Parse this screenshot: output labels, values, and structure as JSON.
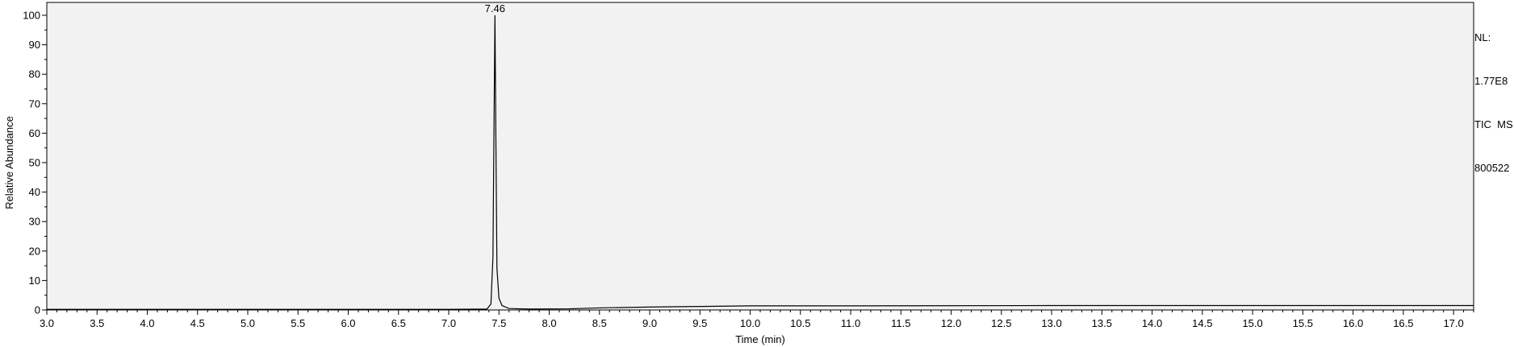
{
  "chart_data": {
    "type": "line",
    "title": "",
    "xlabel": "Time (min)",
    "ylabel": "Relative Abundance",
    "xlim": [
      3.0,
      17.2
    ],
    "ylim": [
      0,
      100
    ],
    "xticks": [
      "3.0",
      "3.5",
      "4.0",
      "4.5",
      "5.0",
      "5.5",
      "6.0",
      "6.5",
      "7.0",
      "7.5",
      "8.0",
      "8.5",
      "9.0",
      "9.5",
      "10.0",
      "10.5",
      "11.0",
      "11.5",
      "12.0",
      "12.5",
      "13.0",
      "13.5",
      "14.0",
      "14.5",
      "15.0",
      "15.5",
      "16.0",
      "16.5",
      "17.0"
    ],
    "yticks": [
      "0",
      "10",
      "20",
      "30",
      "40",
      "50",
      "60",
      "70",
      "80",
      "90",
      "100"
    ],
    "grid": false,
    "legend": "none",
    "plot_background": "#f2f2f2",
    "line_color": "#000000",
    "series": [
      {
        "x": [
          3.0,
          5.0,
          7.0,
          7.38,
          7.42,
          7.44,
          7.45,
          7.46,
          7.47,
          7.48,
          7.5,
          7.53,
          7.6,
          7.8,
          8.2,
          8.5,
          9.0,
          9.5,
          10.0,
          11.0,
          13.0,
          15.0,
          17.2
        ],
        "y": [
          0.2,
          0.2,
          0.2,
          0.3,
          2.0,
          18.0,
          60.0,
          100.0,
          55.0,
          14.0,
          4.0,
          1.5,
          0.5,
          0.3,
          0.4,
          0.7,
          1.0,
          1.2,
          1.4,
          1.4,
          1.5,
          1.5,
          1.5
        ]
      }
    ],
    "annotations": [
      {
        "text": "7.46",
        "x": 7.46,
        "y": 100
      }
    ]
  },
  "info_block": {
    "nl_label": "NL:",
    "nl_value": "1.77E8",
    "trace_label": "TIC  MS",
    "file_name": "800522"
  }
}
